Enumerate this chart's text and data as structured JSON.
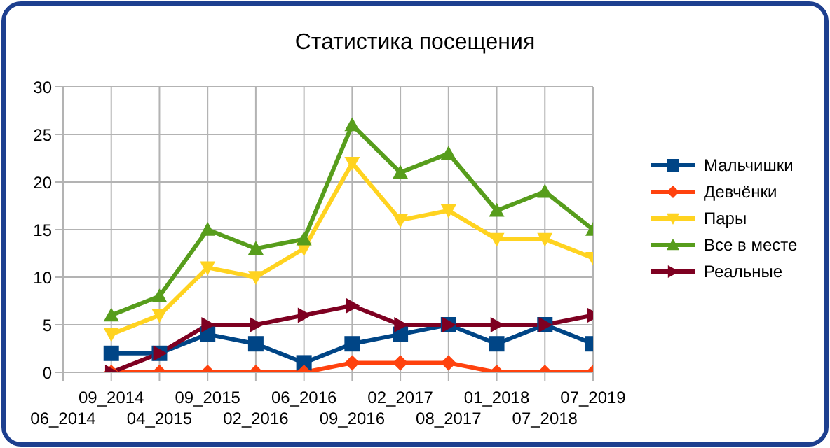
{
  "chart_data": {
    "type": "line",
    "title": "Статистика посещения",
    "categories": [
      "06_2014",
      "09_2014",
      "04_2015",
      "09_2015",
      "02_2016",
      "06_2016",
      "09_2016",
      "02_2017",
      "08_2017",
      "01_2018",
      "07_2018",
      "07_2019"
    ],
    "series": [
      {
        "name": "Мальчишки",
        "color": "#004586",
        "marker": "square",
        "values": [
          null,
          2,
          2,
          4,
          3,
          1,
          3,
          4,
          5,
          3,
          5,
          3
        ]
      },
      {
        "name": "Девчёнки",
        "color": "#ff420e",
        "marker": "diamond",
        "values": [
          null,
          0,
          0,
          0,
          0,
          0,
          1,
          1,
          1,
          0,
          0,
          0
        ]
      },
      {
        "name": "Пары",
        "color": "#ffd320",
        "marker": "triangle-down",
        "values": [
          null,
          4,
          6,
          11,
          10,
          13,
          22,
          16,
          17,
          14,
          14,
          12
        ]
      },
      {
        "name": "Все в месте",
        "color": "#579d1c",
        "marker": "triangle",
        "values": [
          null,
          6,
          8,
          15,
          13,
          14,
          26,
          21,
          23,
          17,
          19,
          15
        ]
      },
      {
        "name": "Реальные",
        "color": "#7e0021",
        "marker": "triangle-right",
        "values": [
          null,
          0,
          2,
          5,
          5,
          6,
          7,
          5,
          5,
          5,
          5,
          6
        ]
      }
    ],
    "ylim": [
      0,
      30
    ],
    "yticks": [
      0,
      5,
      10,
      15,
      20,
      25,
      30
    ],
    "grid": true,
    "legend": "right",
    "line_style": "solid"
  }
}
